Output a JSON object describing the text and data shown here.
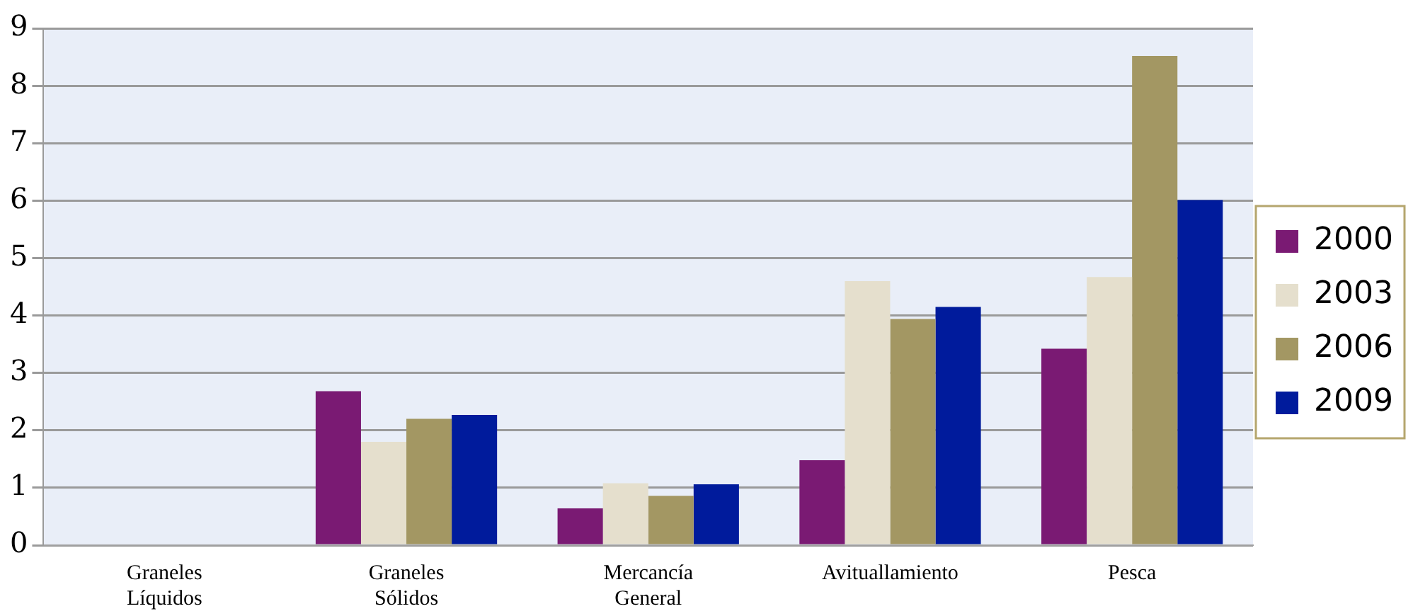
{
  "chart_data": {
    "type": "bar",
    "categories": [
      "Graneles Líquidos",
      "Graneles Sólidos",
      "Mercancía General",
      "Avituallamiento",
      "Pesca"
    ],
    "series": [
      {
        "name": "2000",
        "color": "#7a1a73",
        "values": [
          0,
          2.68,
          0.64,
          1.48,
          3.42
        ]
      },
      {
        "name": "2003",
        "color": "#e5dfcd",
        "values": [
          0,
          1.8,
          1.08,
          4.6,
          4.67
        ]
      },
      {
        "name": "2006",
        "color": "#a39763",
        "values": [
          0,
          2.2,
          0.86,
          3.94,
          8.52
        ]
      },
      {
        "name": "2009",
        "color": "#001b9c",
        "values": [
          0,
          2.27,
          1.06,
          4.15,
          6.01
        ]
      }
    ],
    "ylim": [
      0,
      9
    ],
    "yticks": [
      0,
      1,
      2,
      3,
      4,
      5,
      6,
      7,
      8,
      9
    ],
    "grid": "y",
    "legend": "right"
  }
}
